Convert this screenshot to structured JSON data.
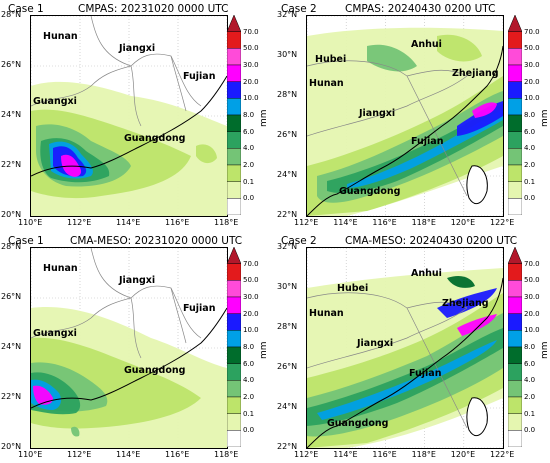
{
  "panels": [
    {
      "case": "Case 1",
      "title": "CMPAS: 20231020 0000 UTC",
      "lat_ticks": [
        "28°N",
        "26°N",
        "24°N",
        "22°N",
        "20°N"
      ],
      "lon_ticks": [
        "110°E",
        "112°E",
        "114°E",
        "116°E",
        "118°E"
      ],
      "provinces": [
        "Hunan",
        "Jiangxi",
        "Fujian",
        "Guangxi",
        "Guangdong"
      ]
    },
    {
      "case": "Case 2",
      "title": "CMPAS: 20240430 0200 UTC",
      "lat_ticks": [
        "32°N",
        "30°N",
        "28°N",
        "26°N",
        "24°N",
        "22°N"
      ],
      "lon_ticks": [
        "112°E",
        "114°E",
        "116°E",
        "118°E",
        "120°E",
        "122°E"
      ],
      "provinces": [
        "Anhui",
        "Hubei",
        "Zhejiang",
        "Hunan",
        "Jiangxi",
        "Fujian",
        "Guangdong"
      ]
    },
    {
      "case": "Case 1",
      "title": "CMA-MESO: 20231020 0000 UTC",
      "lat_ticks": [
        "28°N",
        "26°N",
        "24°N",
        "22°N",
        "20°N"
      ],
      "lon_ticks": [
        "110°E",
        "112°E",
        "114°E",
        "116°E",
        "118°E"
      ],
      "provinces": [
        "Hunan",
        "Jiangxi",
        "Fujian",
        "Guangxi",
        "Guangdong"
      ]
    },
    {
      "case": "Case 2",
      "title": "CMA-MESO: 20240430 0200 UTC",
      "lat_ticks": [
        "32°N",
        "30°N",
        "28°N",
        "26°N",
        "24°N",
        "22°N"
      ],
      "lon_ticks": [
        "112°E",
        "114°E",
        "116°E",
        "118°E",
        "120°E",
        "122°E"
      ],
      "provinces": [
        "Anhui",
        "Hubei",
        "Zhejiang",
        "Hunan",
        "Jiangxi",
        "Fujian",
        "Guangdong"
      ]
    }
  ],
  "colorbar": {
    "unit": "mm",
    "levels": [
      "70.0",
      "50.0",
      "30.0",
      "20.0",
      "10.0",
      "8.0",
      "6.0",
      "4.0",
      "2.0",
      "0.1",
      "0.0"
    ],
    "colors": [
      "#b2182b",
      "#e31a1c",
      "#ff4bd9",
      "#ff00ff",
      "#1a1aff",
      "#00a0e6",
      "#006d2c",
      "#2ca25f",
      "#74c476",
      "#bde46a",
      "#e5f6b0",
      "#ffffff"
    ]
  }
}
